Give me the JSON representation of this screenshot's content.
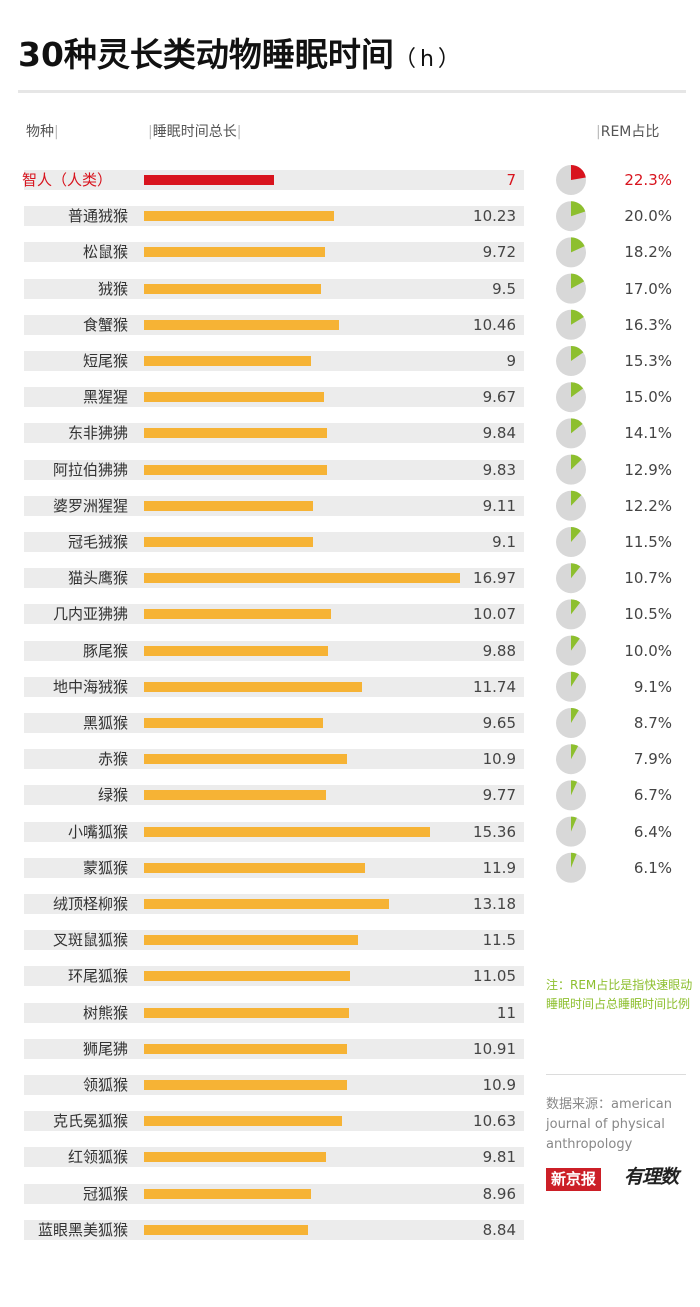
{
  "title": "30种灵长类动物睡眠时间",
  "title_unit": "（h）",
  "headers": {
    "species": "物种",
    "total": "睡眠时间总长",
    "rem": "REM占比"
  },
  "colors": {
    "human_bar": "#d8141e",
    "bar": "#f6b335",
    "pie_bg": "#d8d8d8",
    "pie_rem": "#8dbf2e",
    "pie_rem_human": "#d8141e",
    "row_bg": "#ececec",
    "human_text": "#d8141e"
  },
  "chart_data": {
    "type": "bar",
    "title": "30种灵长类动物睡眠时间（h）",
    "xlabel": "睡眠时间总长",
    "ylabel": "物种",
    "xlim": [
      0,
      18
    ],
    "categories": [
      "智人（人类）",
      "普通狨猴",
      "松鼠猴",
      "狨猴",
      "食蟹猴",
      "短尾猴",
      "黑猩猩",
      "东非狒狒",
      "阿拉伯狒狒",
      "婆罗洲猩猩",
      "冠毛狨猴",
      "猫头鹰猴",
      "几内亚狒狒",
      "豚尾猴",
      "地中海狨猴",
      "黑狐猴",
      "赤猴",
      "绿猴",
      "小嘴狐猴",
      "蒙狐猴",
      "绒顶柽柳猴",
      "叉斑鼠狐猴",
      "环尾狐猴",
      "树熊猴",
      "狮尾狒",
      "领狐猴",
      "克氏冕狐猴",
      "红领狐猴",
      "冠狐猴",
      "蓝眼黑美狐猴"
    ],
    "values": [
      7,
      10.23,
      9.72,
      9.5,
      10.46,
      9,
      9.67,
      9.84,
      9.83,
      9.11,
      9.1,
      16.97,
      10.07,
      9.88,
      11.74,
      9.65,
      10.9,
      9.77,
      15.36,
      11.9,
      13.18,
      11.5,
      11.05,
      11,
      10.91,
      10.9,
      10.63,
      9.81,
      8.96,
      8.84
    ],
    "value_labels": [
      "7",
      "10.23",
      "9.72",
      "9.5",
      "10.46",
      "9",
      "9.67",
      "9.84",
      "9.83",
      "9.11",
      "9.1",
      "16.97",
      "10.07",
      "9.88",
      "11.74",
      "9.65",
      "10.9",
      "9.77",
      "15.36",
      "11.9",
      "13.18",
      "11.5",
      "11.05",
      "11",
      "10.91",
      "10.9",
      "10.63",
      "9.81",
      "8.96",
      "8.84"
    ],
    "highlight_index": 0,
    "rem": {
      "type": "pie",
      "title": "REM占比",
      "values": [
        22.3,
        20.0,
        18.2,
        17.0,
        16.3,
        15.3,
        15.0,
        14.1,
        12.9,
        12.2,
        11.5,
        10.7,
        10.5,
        10.0,
        9.1,
        8.7,
        7.9,
        6.7,
        6.4,
        6.1
      ],
      "labels": [
        "22.3%",
        "20.0%",
        "18.2%",
        "17.0%",
        "16.3%",
        "15.3%",
        "15.0%",
        "14.1%",
        "12.9%",
        "12.2%",
        "11.5%",
        "10.7%",
        "10.5%",
        "10.0%",
        "9.1%",
        "8.7%",
        "7.9%",
        "6.7%",
        "6.4%",
        "6.1%"
      ]
    }
  },
  "note": "注：REM占比是指快速眼动睡眠时间占总睡眠时间比例",
  "source": "数据来源：american journal of physical anthropology",
  "logos": {
    "primary": "新京报",
    "secondary": "有理数"
  }
}
